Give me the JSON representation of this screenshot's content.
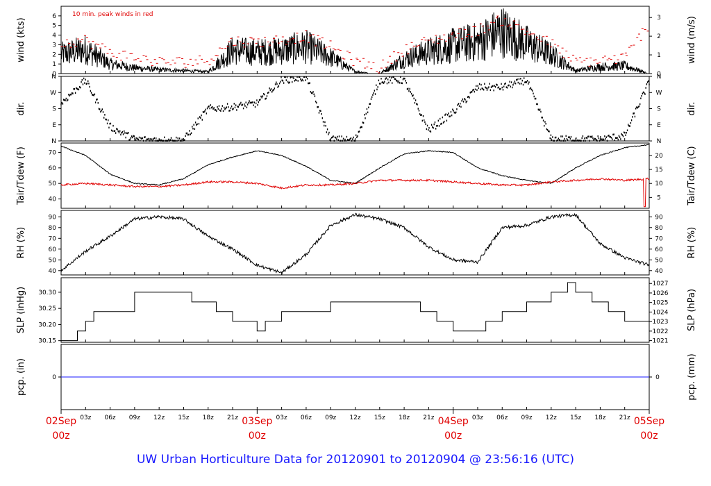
{
  "footer": "UW Urban Horticulture Data for 20120901  to  20120904 @ 23:56:16  (UTC)",
  "annotation": "10 min. peak winds in red",
  "colors": {
    "red": "#e00000",
    "blue": "#1a1aff",
    "black": "#000000"
  },
  "chart_data": [
    {
      "type": "line",
      "id": "wind",
      "ylabel_left": "wind (kts)",
      "ylabel_right": "wind (m/s)",
      "ylim": [
        0,
        7
      ],
      "ylim_right": [
        0,
        3.6
      ],
      "yticks_left": [
        0,
        1,
        2,
        3,
        4,
        5,
        6
      ],
      "yticks_right": [
        0,
        1,
        2,
        3
      ],
      "x_hours": [
        0,
        3,
        6,
        9,
        12,
        15,
        18,
        21,
        24,
        27,
        30,
        33,
        36,
        39,
        42,
        45,
        48,
        51,
        54,
        57,
        60,
        63,
        66,
        69,
        72
      ],
      "series": [
        {
          "name": "",
          "values": [
            2.0,
            2.5,
            1.0,
            0.6,
            0.4,
            0.3,
            0.2,
            2.4,
            2.2,
            2.4,
            2.8,
            1.7,
            0.2,
            0.0,
            1.5,
            2.3,
            2.9,
            3.3,
            4.4,
            3.1,
            2.0,
            0.3,
            0.7,
            0.8,
            0.0
          ]
        },
        {
          "name": "",
          "values": [
            3.2,
            3.5,
            2.2,
            1.7,
            1.2,
            1.2,
            1.4,
            3.4,
            3.3,
            3.5,
            3.9,
            2.8,
            1.3,
            0.6,
            2.5,
            3.4,
            4.0,
            4.5,
            5.6,
            4.4,
            3.1,
            1.2,
            1.4,
            1.6,
            5.2
          ]
        }
      ]
    },
    {
      "type": "scatter",
      "id": "dir",
      "ylabel_left": "dir.",
      "ylabel_right": "dir.",
      "ylim": [
        0,
        360
      ],
      "ytick_labels": [
        "N",
        "E",
        "S",
        "W",
        "N"
      ],
      "yticks": [
        0,
        90,
        180,
        270,
        360
      ],
      "x_hours": [
        0,
        3,
        6,
        9,
        12,
        15,
        18,
        21,
        24,
        27,
        30,
        33,
        36,
        39,
        42,
        45,
        48,
        51,
        54,
        57,
        60,
        63,
        66,
        69,
        72
      ],
      "series": [
        {
          "name": "",
          "values": [
            210,
            340,
            80,
            10,
            5,
            5,
            180,
            190,
            210,
            340,
            355,
            10,
            5,
            340,
            340,
            60,
            160,
            300,
            300,
            340,
            10,
            10,
            10,
            30,
            330
          ]
        }
      ]
    },
    {
      "type": "line",
      "id": "temp",
      "ylabel_left": "Tair/Tdew (F)",
      "ylabel_right": "Tair/Tdew (C)",
      "ylim": [
        34,
        76
      ],
      "yticks_left": [
        40,
        50,
        60,
        70
      ],
      "yticks_right": [
        5,
        10,
        15,
        20
      ],
      "x_hours": [
        0,
        3,
        6,
        9,
        12,
        15,
        18,
        21,
        24,
        27,
        30,
        33,
        36,
        39,
        42,
        45,
        48,
        51,
        54,
        57,
        60,
        63,
        66,
        69,
        72
      ],
      "series": [
        {
          "name": "",
          "values": [
            74,
            68,
            56,
            50,
            49,
            53,
            62,
            67,
            71,
            68,
            61,
            52,
            50,
            60,
            69,
            71,
            70,
            60,
            55,
            52,
            50,
            60,
            68,
            73,
            75
          ]
        },
        {
          "name": "",
          "values": [
            49,
            50,
            49,
            48,
            48,
            49,
            51,
            51,
            50,
            47,
            49,
            49,
            50,
            52,
            52,
            52,
            51,
            50,
            49,
            49,
            51,
            52,
            53,
            52,
            53
          ]
        }
      ]
    },
    {
      "type": "line",
      "id": "rh",
      "ylabel_left": "RH (%)",
      "ylabel_right": "RH (%)",
      "ylim": [
        36,
        96
      ],
      "yticks_left": [
        40,
        50,
        60,
        70,
        80,
        90
      ],
      "yticks_right": [
        40,
        50,
        60,
        70,
        80,
        90
      ],
      "x_hours": [
        0,
        3,
        6,
        9,
        12,
        15,
        18,
        21,
        24,
        27,
        30,
        33,
        36,
        39,
        42,
        45,
        48,
        51,
        54,
        57,
        60,
        63,
        66,
        69,
        72
      ],
      "series": [
        {
          "name": "",
          "values": [
            40,
            58,
            72,
            88,
            90,
            88,
            72,
            60,
            45,
            38,
            55,
            82,
            92,
            88,
            80,
            62,
            50,
            48,
            80,
            82,
            90,
            92,
            65,
            52,
            45
          ]
        }
      ]
    },
    {
      "type": "line",
      "id": "slp",
      "ylabel_left": "SLP (inHg)",
      "ylabel_right": "SLP (hPa)",
      "ylim": [
        30.145,
        30.345
      ],
      "yticks_left": [
        30.15,
        30.2,
        30.25,
        30.3
      ],
      "ytick_labels_left": [
        "30.15",
        "30.20",
        "30.25",
        "30.30"
      ],
      "yticks_right": [
        1021,
        1022,
        1023,
        1024,
        1025,
        1026,
        1027
      ],
      "x_hours": [
        0,
        2,
        3,
        4,
        6,
        9,
        12,
        15,
        16,
        19,
        21,
        23,
        24,
        25,
        27,
        30,
        33,
        36,
        39,
        42,
        44,
        46,
        48,
        50,
        52,
        54,
        57,
        60,
        62,
        63,
        65,
        67,
        69,
        72
      ],
      "series": [
        {
          "name": "",
          "values": [
            30.15,
            30.18,
            30.21,
            30.24,
            30.24,
            30.3,
            30.3,
            30.3,
            30.27,
            30.24,
            30.21,
            30.21,
            30.18,
            30.21,
            30.24,
            30.24,
            30.27,
            30.27,
            30.27,
            30.27,
            30.24,
            30.21,
            30.18,
            30.18,
            30.21,
            30.24,
            30.27,
            30.3,
            30.33,
            30.3,
            30.27,
            30.24,
            30.21,
            30.18
          ]
        }
      ]
    },
    {
      "type": "line",
      "id": "pcp",
      "ylabel_left": "pcp. (in)",
      "ylabel_right": "pcp. (mm)",
      "ylim": [
        -1,
        1
      ],
      "yticks_left": [
        0
      ],
      "yticks_right": [
        0
      ],
      "x_hours": [
        0,
        72
      ],
      "series": [
        {
          "name": "",
          "values": [
            0,
            0
          ]
        }
      ]
    }
  ],
  "xaxis": {
    "major": [
      {
        "h": 0,
        "date": "02Sep",
        "time": "00z"
      },
      {
        "h": 24,
        "date": "03Sep",
        "time": "00z"
      },
      {
        "h": 48,
        "date": "04Sep",
        "time": "00z"
      },
      {
        "h": 72,
        "date": "05Sep",
        "time": "00z"
      }
    ],
    "minor": [
      {
        "h": 3,
        "label": "03z"
      },
      {
        "h": 6,
        "label": "06z"
      },
      {
        "h": 9,
        "label": "09z"
      },
      {
        "h": 12,
        "label": "12z"
      },
      {
        "h": 15,
        "label": "15z"
      },
      {
        "h": 18,
        "label": "18z"
      },
      {
        "h": 21,
        "label": "21z"
      },
      {
        "h": 27,
        "label": "03z"
      },
      {
        "h": 30,
        "label": "06z"
      },
      {
        "h": 33,
        "label": "09z"
      },
      {
        "h": 36,
        "label": "12z"
      },
      {
        "h": 39,
        "label": "15z"
      },
      {
        "h": 42,
        "label": "18z"
      },
      {
        "h": 45,
        "label": "21z"
      },
      {
        "h": 51,
        "label": "03z"
      },
      {
        "h": 54,
        "label": "06z"
      },
      {
        "h": 57,
        "label": "09z"
      },
      {
        "h": 60,
        "label": "12z"
      },
      {
        "h": 63,
        "label": "15z"
      },
      {
        "h": 66,
        "label": "18z"
      },
      {
        "h": 69,
        "label": "21z"
      }
    ]
  }
}
